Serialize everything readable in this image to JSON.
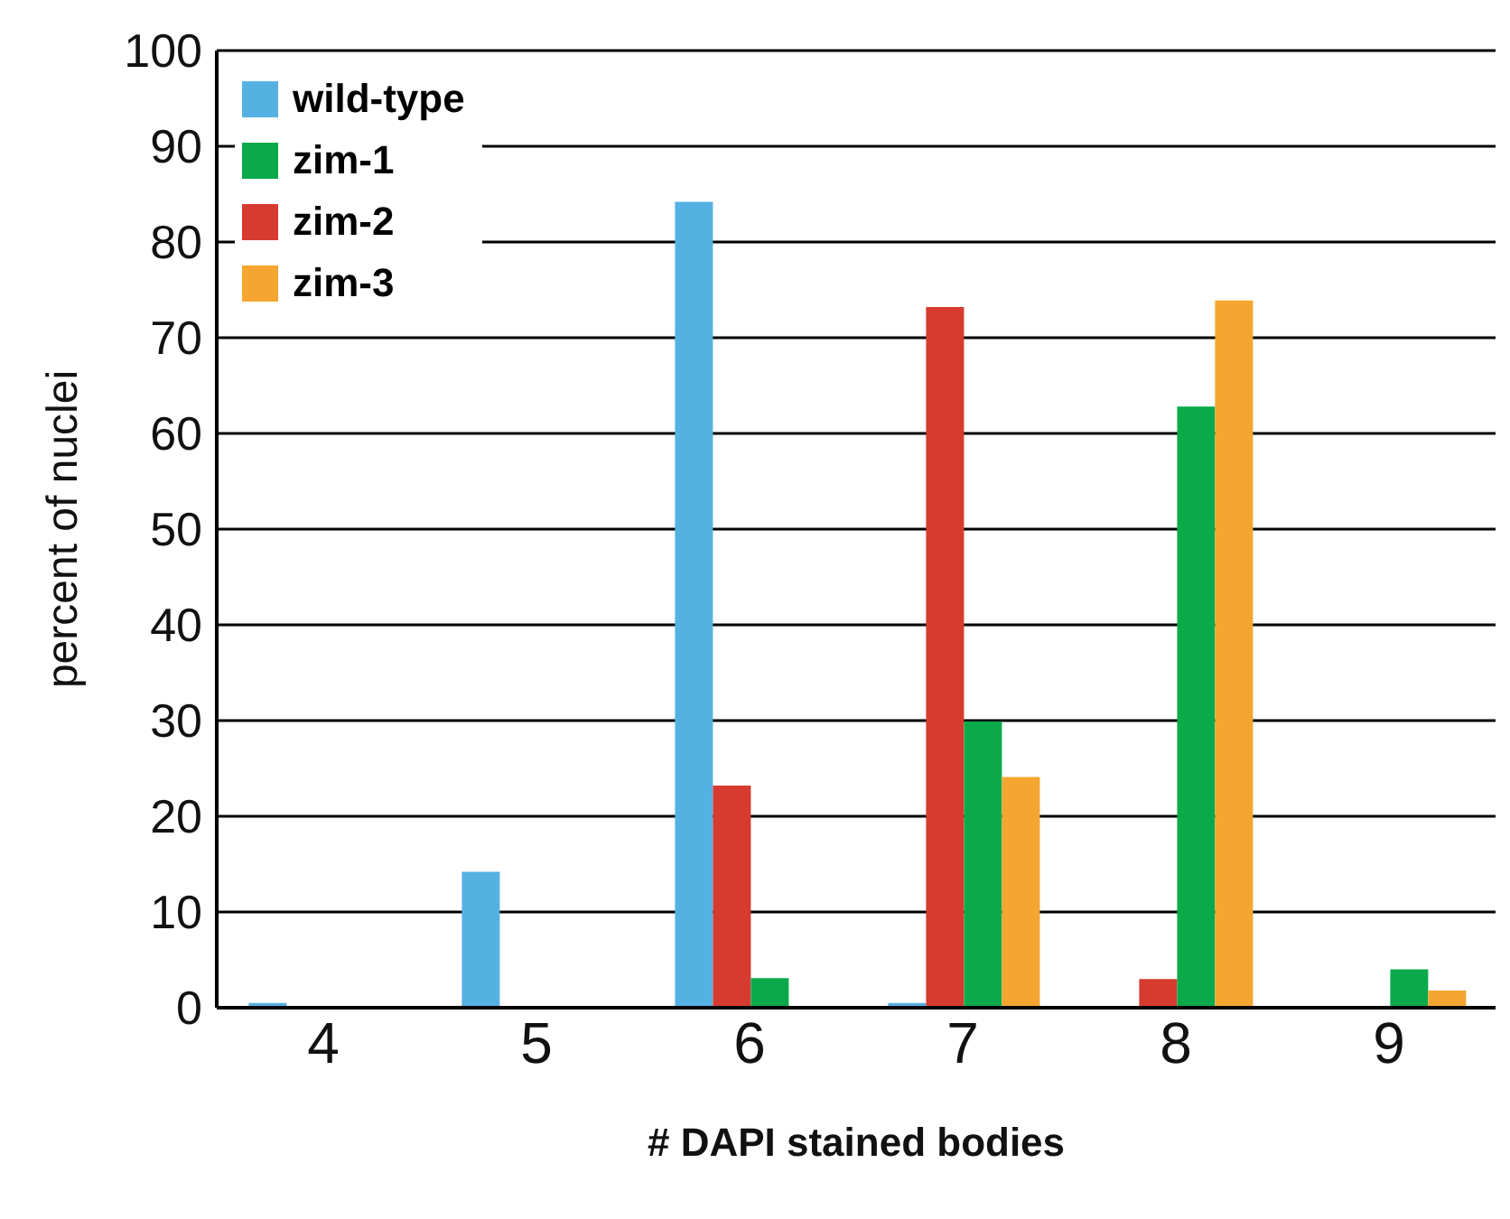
{
  "chart_data": {
    "type": "bar",
    "xlabel": "# DAPI stained bodies",
    "ylabel": "percent of nuclei",
    "categories": [
      "4",
      "5",
      "6",
      "7",
      "8",
      "9"
    ],
    "series": [
      {
        "name": "wild-type",
        "color": "#56b1e3",
        "values": [
          0.5,
          14.2,
          84.2,
          0.5,
          0,
          0
        ]
      },
      {
        "name": "zim-2",
        "color": "#d73a2f",
        "values": [
          0,
          0,
          23.2,
          73.2,
          3,
          0
        ]
      },
      {
        "name": "zim-1",
        "color": "#0aaa4a",
        "values": [
          0,
          0,
          3.1,
          29.9,
          62.8,
          4
        ]
      },
      {
        "name": "zim-3",
        "color": "#f5a630",
        "values": [
          0,
          0,
          0,
          24.1,
          73.9,
          1.8
        ]
      }
    ],
    "ylim": [
      0,
      100
    ],
    "yticks": [
      0,
      10,
      20,
      30,
      40,
      50,
      60,
      70,
      80,
      90,
      100
    ],
    "grid": "y",
    "legend": "top left"
  }
}
